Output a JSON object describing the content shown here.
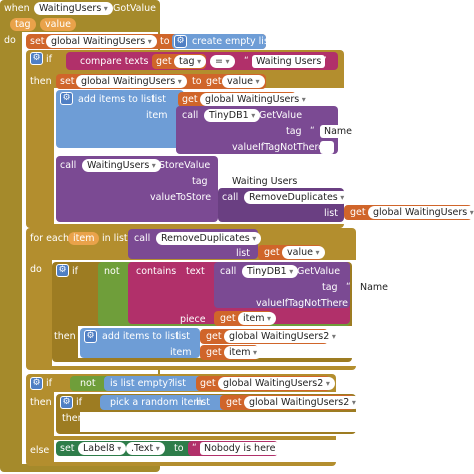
{
  "event": {
    "when": "when",
    "component": "WaitingUsers",
    "event_name": ".GotValue",
    "param_tag": "tag",
    "param_value": "value",
    "do": "do"
  },
  "set1": {
    "set": "set",
    "var": "global WaitingUsers",
    "to": "to",
    "create": "create empty list"
  },
  "if1": {
    "if": "if",
    "compare": "compare texts",
    "get": "get",
    "tag": "tag",
    "op": "=",
    "str": "Waiting Users",
    "then": "then"
  },
  "set2": {
    "set": "set",
    "var": "global WaitingUsers",
    "to": "to",
    "get": "get",
    "value": "value"
  },
  "add1": {
    "label": "add items to list",
    "list": "list",
    "get": "get",
    "var": "global WaitingUsers",
    "item": "item"
  },
  "call1": {
    "call": "call",
    "component": "TinyDB1",
    "method": ".GetValue",
    "tag": "tag",
    "tag_value": "Name",
    "ifnot": "valueIfTagNotThere",
    "ifnot_value": " "
  },
  "store": {
    "call": "call",
    "component": "WaitingUsers",
    "method": ".StoreValue",
    "tag": "tag",
    "tag_value": "Waiting Users",
    "vts": "valueToStore",
    "call2": "call",
    "rd": "RemoveDuplicates",
    "list": "list",
    "get": "get",
    "var": "global WaitingUsers"
  },
  "foreach": {
    "label": "for each",
    "item": "item",
    "inlist": "in list",
    "call": "call",
    "rd": "RemoveDuplicates",
    "list": "list",
    "get": "get",
    "value": "value",
    "do": "do"
  },
  "if2": {
    "if": "if",
    "not": "not",
    "contains": "contains",
    "text": "text",
    "call": "call",
    "component": "TinyDB1",
    "method": ".GetValue",
    "tag": "tag",
    "tag_value": "Name",
    "ifnot": "valueIfTagNotThere",
    "ifnot_value": " ",
    "piece": "piece",
    "get": "get",
    "item": "item",
    "then": "then"
  },
  "add2": {
    "label": "add items to list",
    "list": "list",
    "get": "get",
    "var": "global WaitingUsers2",
    "item": "item",
    "get2": "get",
    "item2": "item"
  },
  "if3": {
    "if": "if",
    "not": "not",
    "empty": "is list empty?",
    "list": "list",
    "get": "get",
    "var": "global WaitingUsers2",
    "then": "then",
    "pick": "pick a random item",
    "list2": "list",
    "get2": "get",
    "var2": "global WaitingUsers2",
    "then2": "then",
    "else": "else"
  },
  "set3": {
    "set": "set",
    "comp": "Label8",
    "prop": ".Text",
    "to": "to",
    "str": "Nobody is here"
  }
}
